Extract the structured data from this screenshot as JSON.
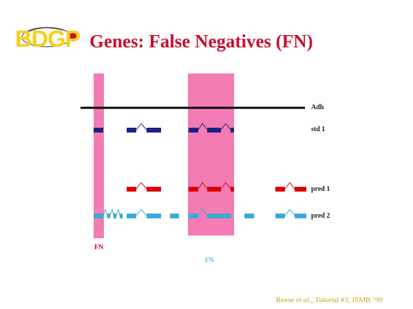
{
  "header": {
    "logo_text": "BDGP",
    "title": "Genes: False Negatives (FN)"
  },
  "tracks": [
    {
      "label": "Adh"
    },
    {
      "label": "std 1"
    },
    {
      "label": "pred 1"
    },
    {
      "label": "pred 2"
    }
  ],
  "fn_labels": {
    "left": "FN",
    "center": "FN"
  },
  "citation": {
    "author": "Reese ",
    "etal": "et al.",
    "rest": ", Tutorial #3, ISMB ‘99"
  },
  "colors": {
    "highlight": "#f47cb4",
    "std": "#1a237e",
    "pred1": "#dd0000",
    "pred2": "#3aaad4",
    "title": "#c8102e"
  }
}
